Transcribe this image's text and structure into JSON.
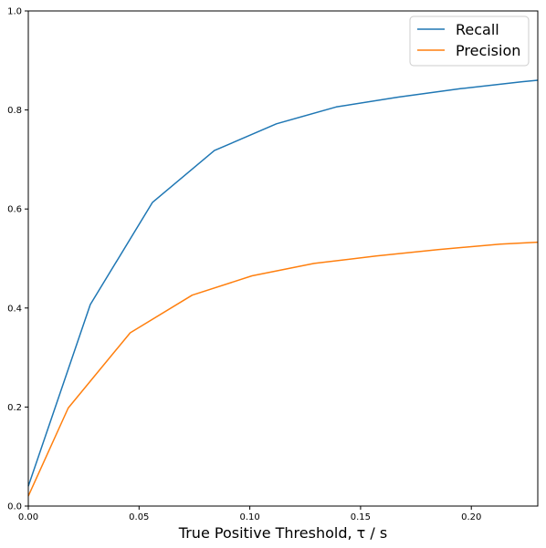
{
  "chart_data": {
    "type": "line",
    "title": "",
    "xlabel": "True Positive Threshold, τ / s",
    "ylabel": "",
    "xlim": [
      0.0,
      0.23
    ],
    "ylim": [
      0.0,
      1.0
    ],
    "xticks": [
      "0.00",
      "0.05",
      "0.10",
      "0.15",
      "0.20"
    ],
    "yticks": [
      "0.0",
      "0.2",
      "0.4",
      "0.6",
      "0.8",
      "1.0"
    ],
    "grid": false,
    "legend_position": "top-right",
    "series": [
      {
        "name": "Recall",
        "color": "#1f77b4",
        "x": [
          0.0,
          0.028,
          0.056,
          0.084,
          0.112,
          0.139,
          0.167,
          0.195,
          0.223,
          0.23
        ],
        "y": [
          0.04,
          0.407,
          0.613,
          0.718,
          0.772,
          0.806,
          0.826,
          0.843,
          0.857,
          0.86
        ]
      },
      {
        "name": "Precision",
        "color": "#ff7f0e",
        "x": [
          0.0,
          0.018,
          0.046,
          0.074,
          0.101,
          0.129,
          0.157,
          0.185,
          0.213,
          0.23
        ],
        "y": [
          0.02,
          0.198,
          0.35,
          0.426,
          0.465,
          0.49,
          0.505,
          0.518,
          0.529,
          0.533
        ]
      }
    ]
  }
}
